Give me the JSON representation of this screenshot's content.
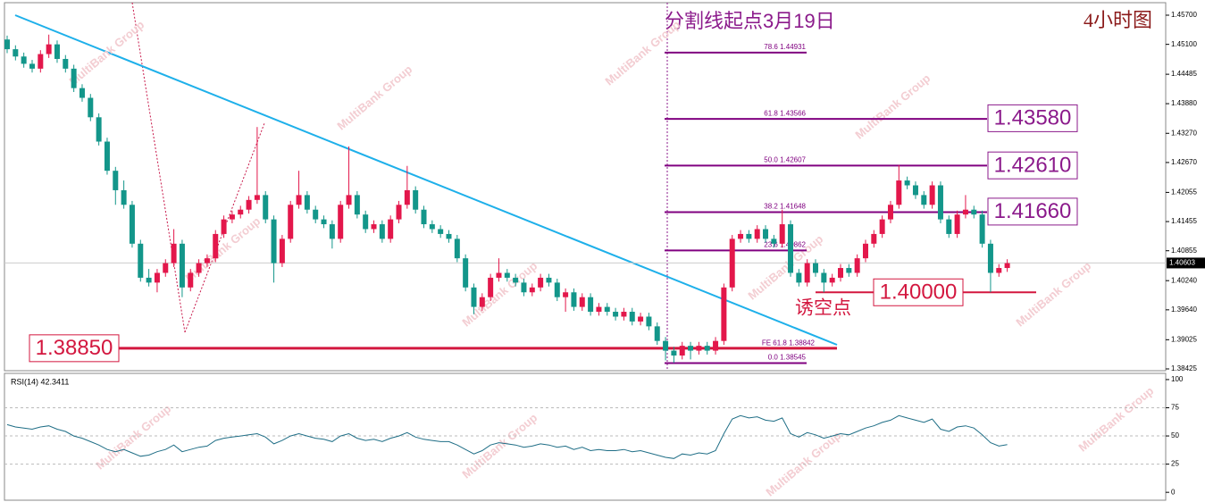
{
  "chart_data": [
    {
      "type": "candlestick",
      "up_color": "#e3174b",
      "down_color": "#13968a",
      "open": [
        1.452,
        1.45,
        1.4485,
        1.447,
        1.446,
        1.449,
        1.451,
        1.448,
        1.446,
        1.442,
        1.44,
        1.436,
        1.431,
        1.425,
        1.421,
        1.418,
        1.41,
        1.403,
        1.402,
        1.404,
        1.406,
        1.41,
        1.401,
        1.404,
        1.406,
        1.407,
        1.412,
        1.415,
        1.416,
        1.417,
        1.419,
        1.42,
        1.415,
        1.406,
        1.411,
        1.418,
        1.42,
        1.417,
        1.415,
        1.414,
        1.411,
        1.418,
        1.42,
        1.416,
        1.413,
        1.414,
        1.411,
        1.415,
        1.418,
        1.421,
        1.417,
        1.414,
        1.413,
        1.412,
        1.411,
        1.407,
        1.401,
        1.397,
        1.399,
        1.403,
        1.404,
        1.403,
        1.402,
        1.4,
        1.401,
        1.403,
        1.402,
        1.399,
        1.4,
        1.397,
        1.399,
        1.396,
        1.397,
        1.396,
        1.395,
        1.396,
        1.394,
        1.395,
        1.393,
        1.39,
        1.388,
        1.387,
        1.389,
        1.388,
        1.389,
        1.388,
        1.39,
        1.401,
        1.411,
        1.412,
        1.411,
        1.413,
        1.411,
        1.41,
        1.414,
        1.404,
        1.402,
        1.406,
        1.404,
        1.402,
        1.403,
        1.405,
        1.404,
        1.407,
        1.41,
        1.412,
        1.415,
        1.418,
        1.423,
        1.422,
        1.42,
        1.418,
        1.422,
        1.415,
        1.412,
        1.416,
        1.417,
        1.416,
        1.41,
        1.404,
        1.405
      ],
      "high": [
        1.4528,
        1.4508,
        1.4493,
        1.4478,
        1.4498,
        1.453,
        1.4518,
        1.4488,
        1.4468,
        1.4428,
        1.4408,
        1.4368,
        1.4318,
        1.4258,
        1.423,
        1.4188,
        1.4108,
        1.4048,
        1.4048,
        1.4068,
        1.413,
        1.4108,
        1.4048,
        1.4068,
        1.4078,
        1.4128,
        1.4158,
        1.4168,
        1.4178,
        1.4198,
        1.434,
        1.4208,
        1.4158,
        1.4118,
        1.4188,
        1.425,
        1.4208,
        1.4178,
        1.4158,
        1.4148,
        1.4188,
        1.43,
        1.4208,
        1.4168,
        1.4148,
        1.4148,
        1.4158,
        1.4188,
        1.426,
        1.4218,
        1.4178,
        1.4148,
        1.4138,
        1.4128,
        1.4118,
        1.4078,
        1.4018,
        1.3998,
        1.4038,
        1.407,
        1.4048,
        1.4038,
        1.4028,
        1.4018,
        1.4038,
        1.4038,
        1.4028,
        1.4008,
        1.4008,
        1.3998,
        1.3998,
        1.3978,
        1.3978,
        1.3968,
        1.3968,
        1.3968,
        1.3958,
        1.3958,
        1.3938,
        1.3908,
        1.3888,
        1.3898,
        1.3898,
        1.3898,
        1.3898,
        1.3908,
        1.4018,
        1.4118,
        1.4128,
        1.4128,
        1.4138,
        1.4138,
        1.4118,
        1.417,
        1.4148,
        1.4048,
        1.4068,
        1.4068,
        1.4048,
        1.4038,
        1.4058,
        1.4058,
        1.4078,
        1.4108,
        1.4128,
        1.4158,
        1.4188,
        1.4262,
        1.4238,
        1.4228,
        1.4208,
        1.4228,
        1.4228,
        1.4158,
        1.4168,
        1.42,
        1.4178,
        1.4168,
        1.4108,
        1.4058,
        1.4068
      ],
      "low": [
        1.4492,
        1.4477,
        1.4462,
        1.4452,
        1.4452,
        1.4482,
        1.4472,
        1.4452,
        1.4412,
        1.4392,
        1.4352,
        1.4302,
        1.4242,
        1.418,
        1.4172,
        1.4092,
        1.4022,
        1.4012,
        1.4,
        1.4032,
        1.4052,
        1.399,
        1.4002,
        1.4032,
        1.4052,
        1.4062,
        1.4112,
        1.4142,
        1.4152,
        1.4162,
        1.4182,
        1.4142,
        1.402,
        1.4052,
        1.4102,
        1.4172,
        1.4162,
        1.4142,
        1.4132,
        1.409,
        1.4102,
        1.4172,
        1.4152,
        1.4122,
        1.4122,
        1.4102,
        1.4102,
        1.4142,
        1.4172,
        1.4162,
        1.4132,
        1.4122,
        1.4112,
        1.4102,
        1.4062,
        1.4002,
        1.3955,
        1.3962,
        1.3982,
        1.4022,
        1.4022,
        1.4012,
        1.3992,
        1.3992,
        1.4002,
        1.4012,
        1.3982,
        1.396,
        1.3962,
        1.3962,
        1.3952,
        1.3952,
        1.3952,
        1.3942,
        1.3942,
        1.3932,
        1.3932,
        1.3922,
        1.3892,
        1.386,
        1.3855,
        1.3862,
        1.3862,
        1.3872,
        1.3872,
        1.3872,
        1.3892,
        1.4002,
        1.4102,
        1.4102,
        1.4102,
        1.4102,
        1.4092,
        1.4092,
        1.4032,
        1.4012,
        1.4012,
        1.4032,
        1.4,
        1.4012,
        1.4022,
        1.4032,
        1.4032,
        1.4062,
        1.4092,
        1.4112,
        1.4142,
        1.4172,
        1.4212,
        1.4192,
        1.4172,
        1.4172,
        1.4142,
        1.4112,
        1.4112,
        1.4152,
        1.4152,
        1.4092,
        1.4,
        1.4032,
        1.4042
      ],
      "close": [
        1.45,
        1.4485,
        1.447,
        1.446,
        1.449,
        1.451,
        1.448,
        1.446,
        1.442,
        1.44,
        1.436,
        1.431,
        1.425,
        1.421,
        1.418,
        1.41,
        1.403,
        1.402,
        1.404,
        1.406,
        1.41,
        1.401,
        1.404,
        1.406,
        1.407,
        1.412,
        1.415,
        1.416,
        1.417,
        1.419,
        1.42,
        1.415,
        1.406,
        1.411,
        1.418,
        1.42,
        1.417,
        1.415,
        1.414,
        1.411,
        1.418,
        1.42,
        1.416,
        1.413,
        1.414,
        1.411,
        1.415,
        1.418,
        1.421,
        1.417,
        1.414,
        1.413,
        1.412,
        1.411,
        1.407,
        1.401,
        1.397,
        1.399,
        1.403,
        1.404,
        1.403,
        1.402,
        1.4,
        1.401,
        1.403,
        1.402,
        1.399,
        1.4,
        1.397,
        1.399,
        1.396,
        1.397,
        1.396,
        1.395,
        1.396,
        1.394,
        1.395,
        1.393,
        1.39,
        1.388,
        1.387,
        1.389,
        1.388,
        1.389,
        1.388,
        1.39,
        1.401,
        1.411,
        1.412,
        1.411,
        1.413,
        1.411,
        1.41,
        1.414,
        1.404,
        1.402,
        1.406,
        1.404,
        1.402,
        1.403,
        1.405,
        1.404,
        1.407,
        1.41,
        1.412,
        1.415,
        1.418,
        1.423,
        1.422,
        1.42,
        1.418,
        1.422,
        1.415,
        1.412,
        1.416,
        1.417,
        1.416,
        1.41,
        1.404,
        1.405,
        1.406
      ],
      "ylim": [
        1.38388,
        1.45957
      ],
      "yticks": [
        {
          "value": 1.457,
          "label": "1.45700"
        },
        {
          "value": 1.451,
          "label": "1.45100"
        },
        1.44485,
        {
          "value": 1.4388,
          "label": "1.43880"
        },
        {
          "value": 1.4327,
          "label": "1.43270"
        },
        {
          "value": 1.4267,
          "label": "1.42670"
        },
        1.42055,
        1.41455,
        1.40855,
        {
          "value": 1.4024,
          "label": "1.40240"
        },
        {
          "value": 1.3964,
          "label": "1.39640"
        },
        1.39025,
        1.38425
      ],
      "last_price": {
        "value": 1.40603,
        "label": "1.40603"
      },
      "fib_levels": [
        {
          "value": 1.44931,
          "label": "78.6  1.44931"
        },
        {
          "value": 1.43566,
          "label": "61.8  1.43566"
        },
        {
          "value": 1.42607,
          "label": "50.0  1.42607"
        },
        {
          "value": 1.41648,
          "label": "38.2  1.41648"
        },
        {
          "value": 1.40862,
          "label": "23.6  1.40862"
        },
        {
          "value": 1.38842,
          "label": "FE 61.8  1.38842"
        },
        {
          "value": 1.38545,
          "label": "0.0  1.38545"
        }
      ],
      "price_levels": [
        {
          "value": 1.4358,
          "label": "1.43580",
          "color": "#8b1a8b"
        },
        {
          "value": 1.4261,
          "label": "1.42610",
          "color": "#8b1a8b"
        },
        {
          "value": 1.4166,
          "label": "1.41660",
          "color": "#8b1a8b"
        },
        {
          "value": 1.4,
          "label": "1.40000",
          "color": "#d3173f"
        },
        {
          "value": 1.3885,
          "label": "1.38850",
          "color": "#d3173f"
        }
      ],
      "annotations": {
        "split_start": "分割线起点3月19日",
        "timeframe": "4小时图",
        "bait": "诱空点"
      },
      "watermark": "MultiBank Group"
    },
    {
      "type": "line",
      "title": "RSI(14) 42.3411",
      "color": "#1f6e86",
      "values": [
        60,
        58,
        57,
        56,
        58,
        59,
        56,
        54,
        50,
        48,
        45,
        42,
        38,
        36,
        38,
        35,
        32,
        33,
        36,
        38,
        42,
        36,
        38,
        40,
        41,
        46,
        48,
        49,
        50,
        51,
        52,
        49,
        43,
        46,
        50,
        52,
        50,
        48,
        47,
        45,
        50,
        52,
        48,
        46,
        47,
        45,
        48,
        50,
        53,
        49,
        47,
        46,
        45,
        45,
        42,
        38,
        34,
        37,
        42,
        44,
        43,
        42,
        40,
        41,
        43,
        42,
        40,
        41,
        38,
        40,
        37,
        38,
        37,
        37,
        38,
        36,
        37,
        35,
        33,
        31,
        30,
        34,
        33,
        35,
        34,
        37,
        52,
        65,
        68,
        66,
        67,
        64,
        63,
        66,
        52,
        49,
        53,
        51,
        48,
        50,
        52,
        51,
        54,
        57,
        59,
        62,
        64,
        68,
        66,
        64,
        62,
        65,
        56,
        54,
        58,
        59,
        57,
        51,
        44,
        41,
        42.3411
      ],
      "ylim": [
        -7,
        105.5
      ],
      "yticks": [
        0,
        25,
        50,
        75,
        100
      ]
    }
  ]
}
